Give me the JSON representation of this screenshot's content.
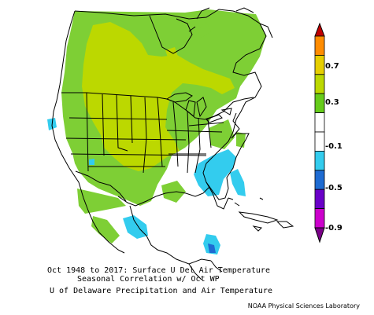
{
  "caption": {
    "line1": "Oct 1948 to 2017: Surface U Del Air Temperature",
    "line2": "Seasonal Correlation w/ Oct WP",
    "line3": "U of Delaware Precipitation and Air Temperature"
  },
  "credit": "NOAA Physical Sciences Laboratory",
  "colorbar": {
    "labels": [
      "0.7",
      "0.3",
      "-0.1",
      "-0.5",
      "-0.9"
    ],
    "bins": [
      {
        "color": "#c00000"
      },
      {
        "color": "#ff8c00"
      },
      {
        "color": "#e6ce00"
      },
      {
        "color": "#bcd800"
      },
      {
        "color": "#66cc1a"
      },
      {
        "color": "#ffffff"
      },
      {
        "color": "#ffffff"
      },
      {
        "color": "#33ccee"
      },
      {
        "color": "#1e6bd2"
      },
      {
        "color": "#6a00c8"
      },
      {
        "color": "#cc00cc"
      },
      {
        "color": "#7a0088"
      }
    ]
  },
  "map_colors": {
    "green": "#7ecf35",
    "yellow_green": "#bcd800",
    "cyan": "#33ccee",
    "blue": "#1e6bd2",
    "land": "#ffffff",
    "coast": "#000000"
  }
}
